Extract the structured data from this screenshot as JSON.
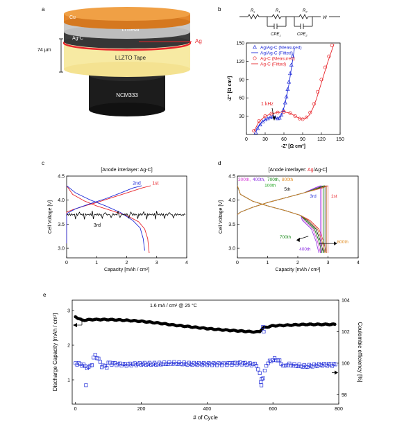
{
  "panel_labels": {
    "a": "a",
    "b": "b",
    "c": "c",
    "d": "d",
    "e": "e"
  },
  "schematic": {
    "layers": [
      "Cu",
      "Li metal",
      "Ag-C",
      "LLZTO Tape",
      "NCM333"
    ],
    "ag_label": "Ag",
    "thickness": "74 μm",
    "colors": {
      "cu": "#e4872d",
      "li": "#c9c9c9",
      "agc": "#3f3f3f",
      "ag": "#e8262c",
      "tape": "#f7eaa3",
      "ncm": "#1c1c1c"
    }
  },
  "circuit": {
    "elements": [
      "R",
      "R",
      "R",
      "W"
    ],
    "subscripts": [
      "s",
      "1",
      "2",
      ""
    ],
    "cpe": [
      "CPE",
      "CPE"
    ],
    "cpe_sub": [
      "1",
      "2"
    ]
  },
  "chart_data": [
    {
      "id": "b",
      "type": "scatter",
      "xlabel": "-Z' [Ω cm²]",
      "ylabel": "-Z'' [Ω cm²]",
      "xlim": [
        0,
        150
      ],
      "ylim": [
        0,
        150
      ],
      "xticks": [
        0,
        30,
        60,
        90,
        120,
        150
      ],
      "yticks": [
        30,
        60,
        90,
        120,
        150
      ],
      "annotation": "1 kHz",
      "series": [
        {
          "name": "Ag/Ag-C (Measured)",
          "style": "triangle",
          "color": "#1f2bd8",
          "x": [
            15,
            18,
            22,
            26,
            30,
            34,
            38,
            42,
            46,
            50,
            53,
            56,
            59,
            62,
            64,
            66,
            68,
            70,
            72,
            74
          ],
          "y": [
            3,
            10,
            16,
            21,
            24,
            26,
            28,
            29,
            28,
            26,
            27,
            32,
            40,
            52,
            62,
            74,
            86,
            100,
            114,
            128
          ]
        },
        {
          "name": "Ag/Ag-C (Fitted)",
          "style": "line",
          "color": "#1f2bd8",
          "x": [
            15,
            20,
            25,
            30,
            35,
            40,
            45,
            50,
            54,
            58,
            62,
            65,
            68,
            71,
            74,
            77
          ],
          "y": [
            4,
            14,
            20,
            24,
            27,
            28.5,
            28,
            26,
            28,
            36,
            52,
            66,
            82,
            102,
            122,
            142
          ]
        },
        {
          "name": "Ag-C (Measured)",
          "style": "circle",
          "color": "#e8262c",
          "x": [
            12,
            20,
            30,
            40,
            50,
            60,
            70,
            78,
            85,
            90,
            96,
            102,
            108,
            114,
            120,
            126,
            132,
            137
          ],
          "y": [
            6,
            22,
            30,
            34,
            36,
            37,
            35,
            30,
            26,
            25,
            28,
            36,
            50,
            70,
            90,
            110,
            128,
            146
          ]
        },
        {
          "name": "Ag-C (Fitted)",
          "style": "line",
          "color": "#e8262c",
          "x": [
            12,
            20,
            30,
            40,
            50,
            60,
            70,
            80,
            88,
            94,
            100,
            106,
            112,
            118,
            124,
            130,
            136,
            140
          ],
          "y": [
            5,
            21,
            30,
            34,
            36,
            37,
            35,
            29,
            25,
            26,
            31,
            42,
            58,
            78,
            98,
            118,
            136,
            148
          ]
        }
      ]
    },
    {
      "id": "c",
      "type": "line",
      "title": "[Anode interlayer: Ag-C]",
      "xlabel": "Capacity [mAh / cm²]",
      "ylabel": "Cell Voltage [V]",
      "xlim": [
        0,
        4
      ],
      "ylim": [
        2.8,
        4.5
      ],
      "xticks": [
        0,
        1,
        2,
        3,
        4
      ],
      "yticks": [
        3.0,
        3.5,
        4.0,
        4.5
      ],
      "series": [
        {
          "name": "1st",
          "color": "#e8262c",
          "charge": {
            "x": [
              0,
              0.2,
              0.6,
              1.0,
              1.5,
              2.0,
              2.5,
              2.8
            ],
            "y": [
              3.75,
              3.8,
              3.88,
              3.95,
              4.05,
              4.15,
              4.25,
              4.3
            ]
          },
          "discharge": {
            "x": [
              0,
              0.2,
              0.6,
              1.0,
              1.5,
              2.0,
              2.4,
              2.6,
              2.7,
              2.75
            ],
            "y": [
              4.3,
              4.12,
              3.98,
              3.88,
              3.78,
              3.68,
              3.55,
              3.4,
              3.2,
              2.9
            ]
          }
        },
        {
          "name": "2nd",
          "color": "#1f2bd8",
          "charge": {
            "x": [
              0,
              0.3,
              0.8,
              1.3,
              1.8,
              2.2,
              2.5
            ],
            "y": [
              3.72,
              3.82,
              3.93,
              4.03,
              4.15,
              4.25,
              4.3
            ]
          },
          "discharge": {
            "x": [
              0,
              0.3,
              0.8,
              1.3,
              1.8,
              2.2,
              2.45,
              2.55,
              2.6
            ],
            "y": [
              4.3,
              4.15,
              4.0,
              3.88,
              3.74,
              3.58,
              3.42,
              3.2,
              2.95
            ]
          }
        },
        {
          "name": "3rd",
          "color": "#000000",
          "charge": {
            "x": [
              0,
              1.0,
              2.0,
              3.0,
              3.9
            ],
            "y": [
              3.7,
              3.69,
              3.7,
              3.7,
              3.71
            ]
          },
          "discharge": {
            "x": [],
            "y": []
          }
        }
      ]
    },
    {
      "id": "d",
      "type": "line",
      "title_prefix": "[Anode interlayer: ",
      "title_ag": "Ag",
      "title_suffix": "/Ag-C]",
      "xlabel": "Capacity [mAh / cm²]",
      "ylabel": "Cell Voltage [V]",
      "xlim": [
        0,
        4
      ],
      "ylim": [
        2.8,
        4.5
      ],
      "xticks": [
        0,
        1,
        2,
        3,
        4
      ],
      "yticks": [
        3.0,
        3.5,
        4.0,
        4.5
      ],
      "cycle_labels": [
        "300th",
        "400th",
        "700th",
        "800th",
        "100th",
        "5th",
        "3rd",
        "1st",
        "700th",
        "400th",
        "800th"
      ],
      "series": [
        {
          "name": "1st",
          "color": "#e8262c",
          "cap": 3.0
        },
        {
          "name": "3rd",
          "color": "#1f2bd8",
          "cap": 2.95
        },
        {
          "name": "5th",
          "color": "#000000",
          "cap": 2.9
        },
        {
          "name": "100th",
          "color": "#1ea51e",
          "cap": 2.85
        },
        {
          "name": "300th",
          "color": "#d63ad6",
          "cap": 2.8
        },
        {
          "name": "400th",
          "color": "#8a2be2",
          "cap": 2.75
        },
        {
          "name": "700th",
          "color": "#1a8a1a",
          "cap": 2.85
        },
        {
          "name": "800th",
          "color": "#e08a1e",
          "cap": 2.95
        }
      ]
    },
    {
      "id": "e",
      "type": "scatter",
      "annotation": "1.6 mA / cm² @ 25 °C",
      "xlabel": "# of Cycle",
      "ylabel": "Discharge Capacity [mAh / cm²]",
      "y2label": "Coulombic efficiency [%]",
      "xlim": [
        -10,
        800
      ],
      "ylim": [
        0.3,
        3.3
      ],
      "y2lim": [
        97.4,
        104
      ],
      "xticks": [
        0,
        200,
        400,
        600,
        800
      ],
      "yticks": [
        1,
        2,
        3
      ],
      "y2ticks": [
        98,
        100,
        102,
        104
      ],
      "series": [
        {
          "name": "Discharge Capacity",
          "color": "#000000",
          "style": "filled-circle",
          "x": [
            0,
            20,
            50,
            100,
            150,
            200,
            250,
            300,
            350,
            400,
            450,
            500,
            550,
            560,
            570,
            600,
            650,
            700,
            750,
            790
          ],
          "y": [
            2.82,
            2.72,
            2.74,
            2.74,
            2.72,
            2.69,
            2.64,
            2.58,
            2.53,
            2.48,
            2.44,
            2.41,
            2.38,
            2.4,
            2.5,
            2.56,
            2.58,
            2.6,
            2.6,
            2.6
          ]
        },
        {
          "name": "Coulombic efficiency",
          "color": "#1f2bd8",
          "style": "open-square",
          "x": [
            0,
            20,
            40,
            60,
            80,
            100,
            150,
            200,
            250,
            300,
            350,
            400,
            450,
            500,
            550,
            565,
            580,
            600,
            650,
            700,
            750,
            790
          ],
          "y": [
            100.0,
            99.9,
            99.7,
            100.2,
            99.6,
            100.0,
            99.9,
            99.95,
            99.95,
            100.0,
            99.95,
            99.95,
            99.95,
            100.0,
            99.9,
            99.0,
            100.0,
            99.9,
            99.9,
            99.8,
            99.9,
            99.9
          ]
        }
      ],
      "outliers": {
        "x": [
          32,
          563,
          566,
          570,
          572
        ],
        "y": [
          98.6,
          98.8,
          99.0,
          102.3,
          102.0
        ]
      }
    }
  ]
}
